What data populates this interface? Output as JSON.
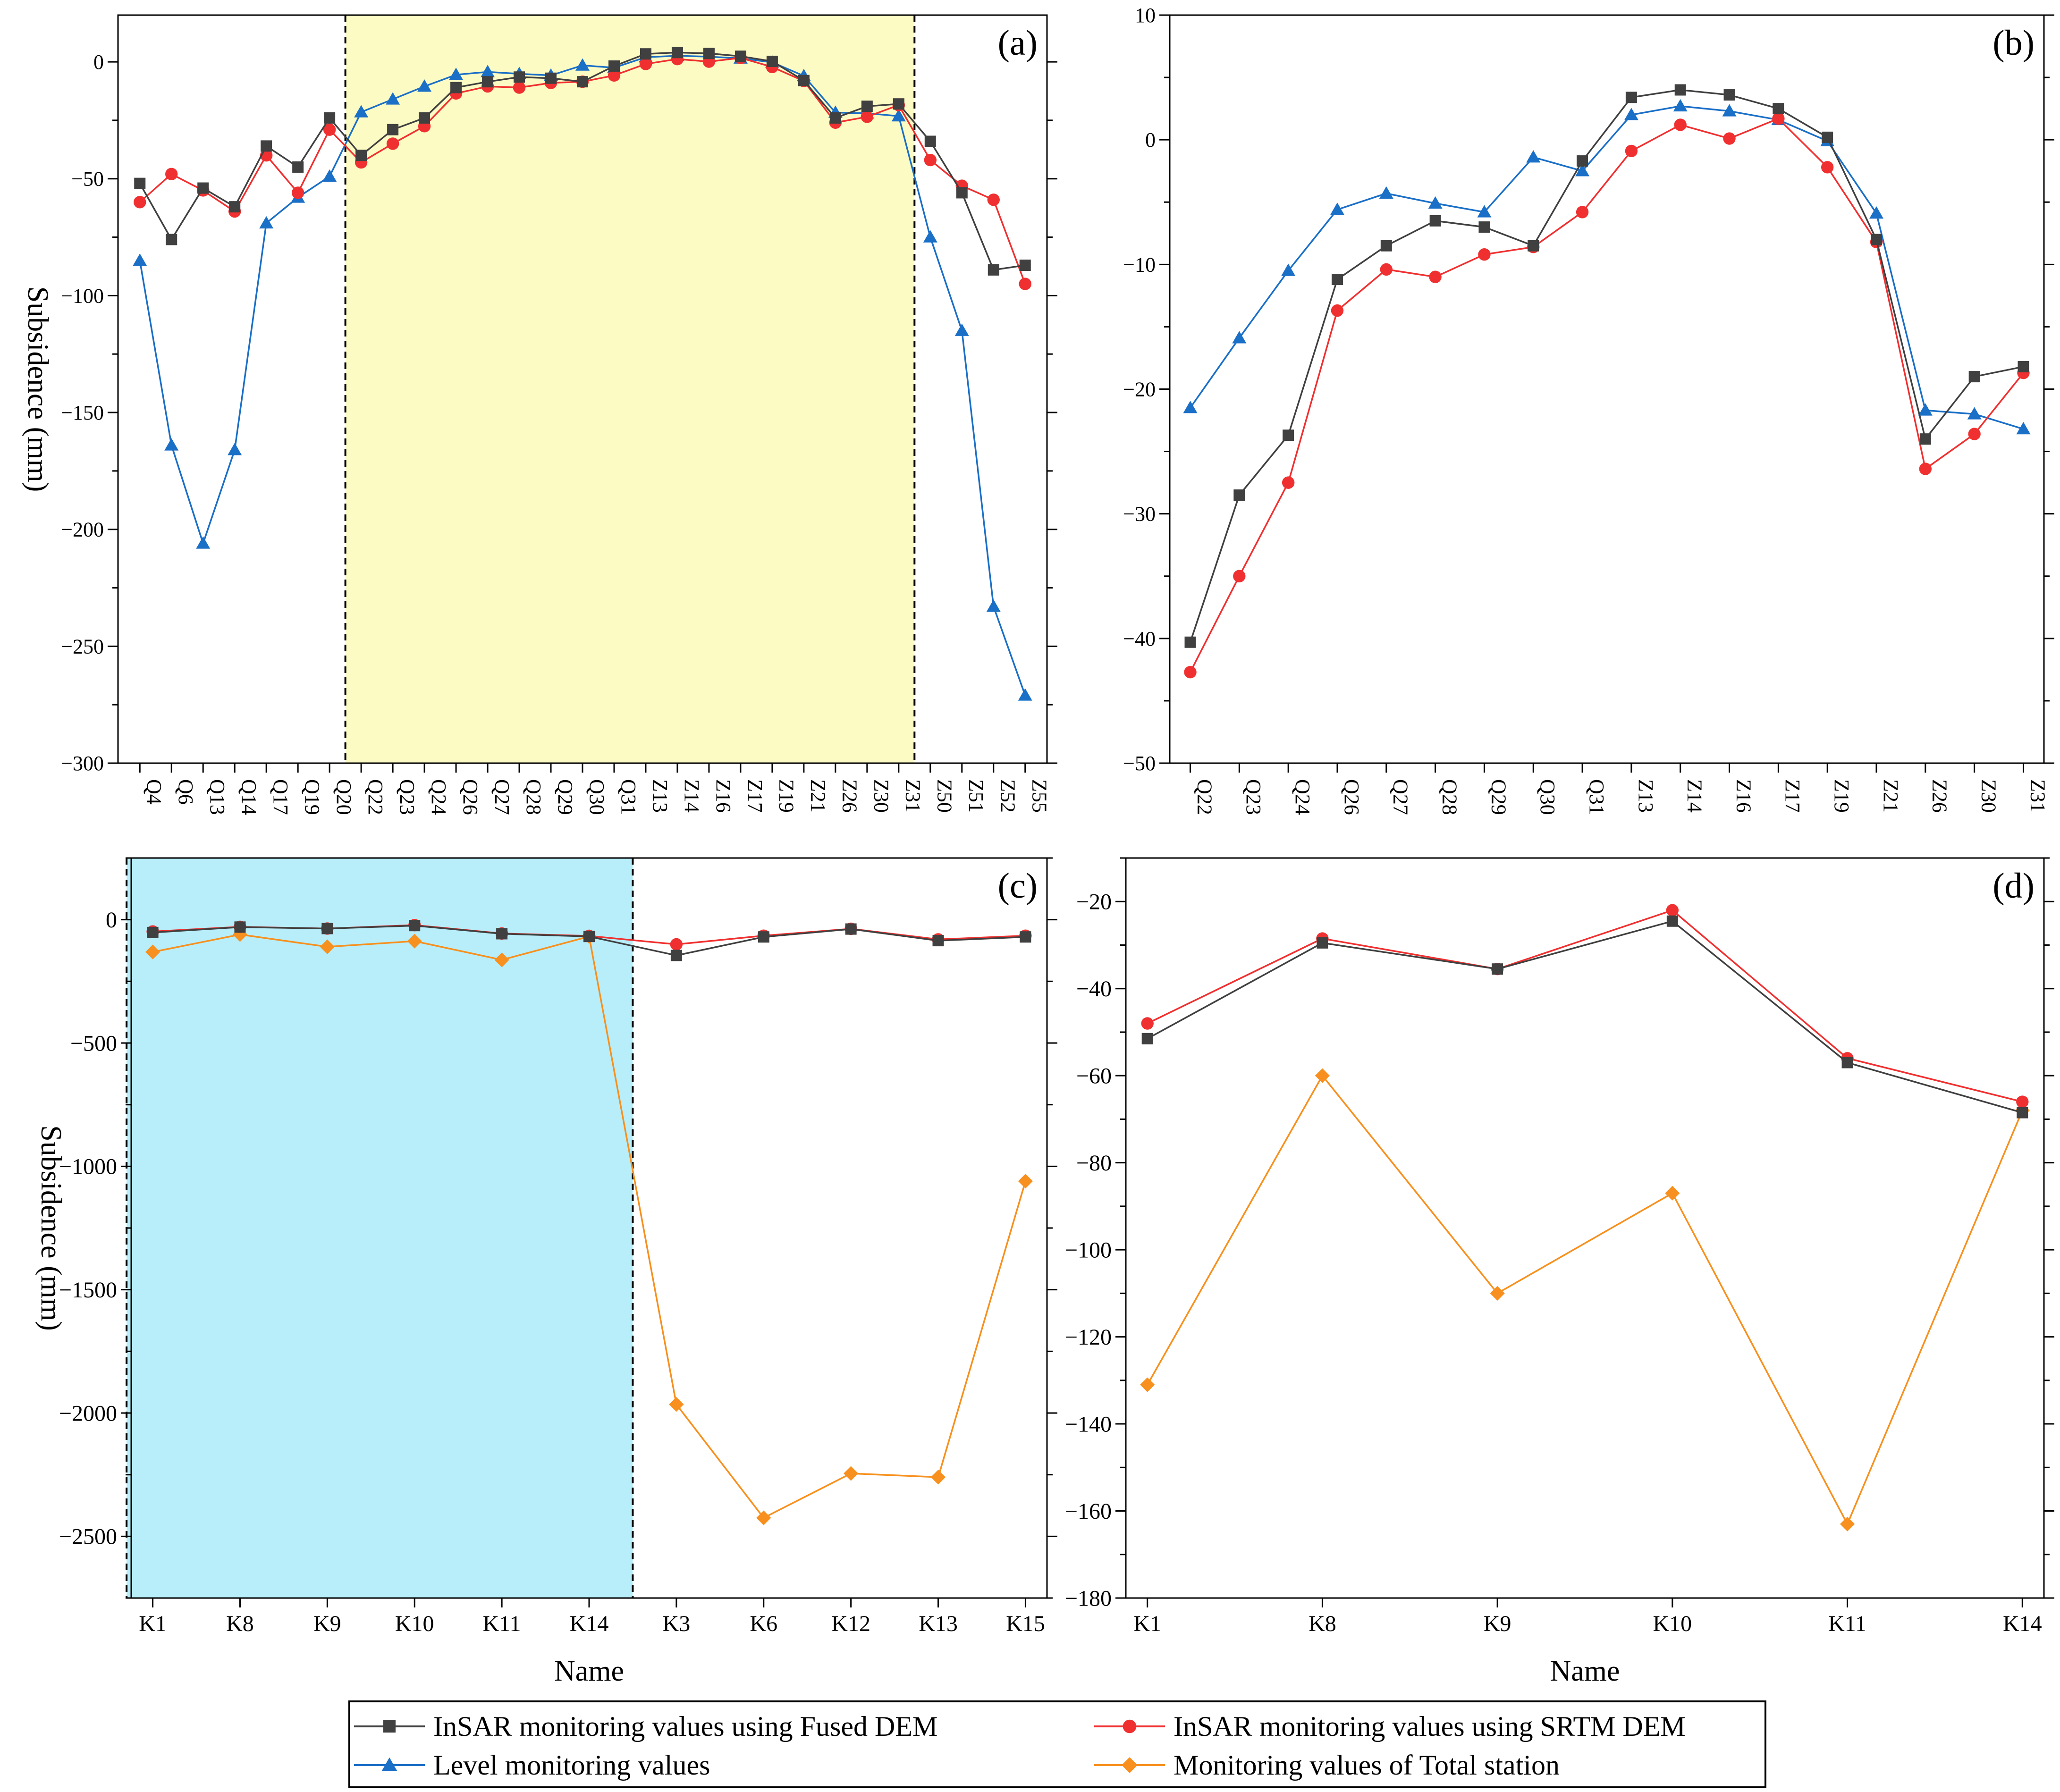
{
  "colors": {
    "fused": "#404040",
    "srtm": "#f03030",
    "level": "#1a6fc7",
    "total": "#f7901e",
    "highlight_a": "#fdfbc4",
    "highlight_c": "#b8eef9"
  },
  "legend": {
    "fused": "InSAR monitoring values using Fused DEM",
    "srtm": "InSAR monitoring values using SRTM DEM",
    "level": "Level monitoring values",
    "total": "Monitoring values of Total station"
  },
  "chart_data": [
    {
      "panel": "(a)",
      "type": "line",
      "ylabel": "Subsidence (mm)",
      "xlabel": "",
      "ylim": [
        -300,
        20
      ],
      "yticks": [
        0,
        -50,
        -100,
        -150,
        -200,
        -250,
        -300
      ],
      "highlight": {
        "from": "Q20",
        "to": "Z31"
      },
      "categories": [
        "Q4",
        "Q6",
        "Q13",
        "Q14",
        "Q17",
        "Q19",
        "Q20",
        "Q22",
        "Q23",
        "Q24",
        "Q26",
        "Q27",
        "Q28",
        "Q29",
        "Q30",
        "Q31",
        "Z13",
        "Z14",
        "Z16",
        "Z17",
        "Z19",
        "Z21",
        "Z26",
        "Z30",
        "Z31",
        "Z50",
        "Z51",
        "Z52",
        "Z55"
      ],
      "series": [
        {
          "key": "fused",
          "values": [
            -52,
            -76,
            -54,
            -62,
            -36,
            -45,
            -24,
            -40,
            -29,
            -24,
            -11,
            -8.5,
            -6.5,
            -7,
            -8.5,
            -1.8,
            3.4,
            4,
            3.6,
            2.4,
            0.2,
            -8,
            -24,
            -19,
            -18,
            -34,
            -56,
            -89,
            -87
          ]
        },
        {
          "key": "srtm",
          "values": [
            -60,
            -48,
            -55,
            -64,
            -40,
            -56,
            -29,
            -43,
            -35,
            -27.5,
            -13.5,
            -10.5,
            -11,
            -9,
            -8.5,
            -5.8,
            -0.9,
            1.2,
            0.1,
            1.7,
            -2.2,
            -8.2,
            -26,
            -23.5,
            -18.5,
            -42,
            -53,
            -59,
            -95
          ]
        },
        {
          "key": "level",
          "values": [
            -85,
            -164,
            -206,
            -166,
            -69,
            -58,
            -49,
            -21.5,
            -16,
            -10.5,
            -5.5,
            -4.3,
            -5.1,
            -5.8,
            -1.5,
            -2.5,
            2,
            2.6,
            2.2,
            1.5,
            -0.2,
            -6,
            -21.7,
            -22,
            -23.2,
            -75,
            -115,
            -233,
            -271
          ]
        }
      ]
    },
    {
      "panel": "(b)",
      "type": "line",
      "ylabel": "",
      "xlabel": "",
      "ylim": [
        -50,
        10
      ],
      "yticks": [
        10,
        0,
        -10,
        -20,
        -30,
        -40,
        -50
      ],
      "categories": [
        "Q22",
        "Q23",
        "Q24",
        "Q26",
        "Q27",
        "Q28",
        "Q29",
        "Q30",
        "Q31",
        "Z13",
        "Z14",
        "Z16",
        "Z17",
        "Z19",
        "Z21",
        "Z26",
        "Z30",
        "Z31"
      ],
      "series": [
        {
          "key": "fused",
          "values": [
            -40.3,
            -28.5,
            -23.7,
            -11.2,
            -8.5,
            -6.5,
            -7,
            -8.5,
            -1.7,
            3.4,
            4,
            3.6,
            2.5,
            0.2,
            -8,
            -24,
            -19,
            -18.2
          ]
        },
        {
          "key": "srtm",
          "values": [
            -42.7,
            -35,
            -27.5,
            -13.7,
            -10.4,
            -11,
            -9.2,
            -8.6,
            -5.8,
            -0.9,
            1.2,
            0.1,
            1.7,
            -2.2,
            -8.2,
            -26.4,
            -23.6,
            -18.7
          ]
        },
        {
          "key": "level",
          "values": [
            -21.5,
            -15.9,
            -10.5,
            -5.6,
            -4.3,
            -5.1,
            -5.8,
            -1.4,
            -2.5,
            2,
            2.7,
            2.3,
            1.6,
            -0.1,
            -5.9,
            -21.7,
            -22,
            -23.2
          ]
        }
      ]
    },
    {
      "panel": "(c)",
      "type": "line",
      "ylabel": "Subsidence (mm)",
      "xlabel": "Name",
      "ylim": [
        -2750,
        250
      ],
      "yticks": [
        0,
        -500,
        -1000,
        -1500,
        -2000,
        -2500
      ],
      "highlight": {
        "from": "K1",
        "to": "K14"
      },
      "categories": [
        "K1",
        "K8",
        "K9",
        "K10",
        "K11",
        "K14",
        "K3",
        "K6",
        "K12",
        "K13",
        "K15"
      ],
      "series": [
        {
          "key": "fused",
          "values": [
            -52,
            -30,
            -36,
            -24,
            -57,
            -68,
            -145,
            -70,
            -38,
            -85,
            -70
          ]
        },
        {
          "key": "srtm",
          "values": [
            -48,
            -29,
            -36,
            -22,
            -56,
            -66,
            -100,
            -65,
            -37,
            -80,
            -65
          ]
        },
        {
          "key": "total",
          "values": [
            -131,
            -60,
            -110,
            -87,
            -163,
            -68,
            -1965,
            -2425,
            -2245,
            -2260,
            -1060
          ]
        }
      ]
    },
    {
      "panel": "(d)",
      "type": "line",
      "ylabel": "",
      "xlabel": "Name",
      "ylim": [
        -180,
        -10
      ],
      "yticks": [
        -20,
        -40,
        -60,
        -80,
        -100,
        -120,
        -140,
        -160,
        -180
      ],
      "categories": [
        "K1",
        "K8",
        "K9",
        "K10",
        "K11",
        "K14"
      ],
      "series": [
        {
          "key": "fused",
          "values": [
            -51.5,
            -29.5,
            -35.5,
            -24.5,
            -57,
            -68.5
          ]
        },
        {
          "key": "srtm",
          "values": [
            -48,
            -28.5,
            -35.5,
            -22,
            -56,
            -66
          ]
        },
        {
          "key": "total",
          "values": [
            -131,
            -60,
            -110,
            -87,
            -163,
            -68
          ]
        }
      ]
    }
  ]
}
